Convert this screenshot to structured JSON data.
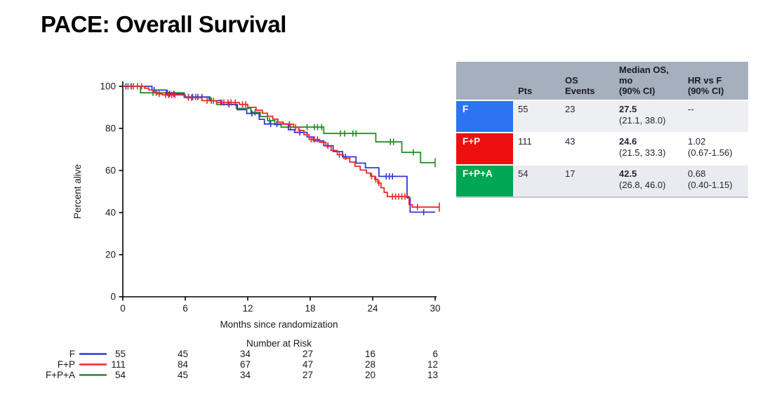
{
  "title": "PACE: Overall Survival",
  "chart_data": {
    "type": "line",
    "subtype": "kaplan-meier-step",
    "title": "",
    "xlabel": "Months since randomization",
    "ylabel": "Percent alive",
    "xlim": [
      0,
      30
    ],
    "ylim": [
      0,
      100
    ],
    "xticks": [
      0,
      6,
      12,
      18,
      24,
      30
    ],
    "yticks": [
      0,
      20,
      40,
      60,
      80,
      100
    ],
    "grid": "off",
    "series": [
      {
        "name": "F",
        "color": "#3236d9",
        "points": [
          [
            0,
            100
          ],
          [
            2.8,
            98.2
          ],
          [
            4.2,
            96.4
          ],
          [
            5.9,
            94.9
          ],
          [
            8.3,
            93.2
          ],
          [
            9.5,
            91.4
          ],
          [
            11.0,
            88.9
          ],
          [
            11.9,
            87.1
          ],
          [
            13.1,
            84.3
          ],
          [
            13.6,
            82.1
          ],
          [
            15.9,
            79.4
          ],
          [
            16.5,
            78.1
          ],
          [
            17.7,
            75.9
          ],
          [
            18.3,
            74.1
          ],
          [
            19.3,
            71.8
          ],
          [
            20.2,
            69.0
          ],
          [
            21.1,
            66.5
          ],
          [
            22.4,
            63.5
          ],
          [
            23.3,
            61.3
          ],
          [
            24.6,
            57.2
          ],
          [
            27.3,
            47.0
          ],
          [
            27.6,
            40.2
          ],
          [
            30.0,
            40.2
          ]
        ],
        "censors": [
          [
            0.3,
            100
          ],
          [
            0.8,
            100
          ],
          [
            3.0,
            98.2
          ],
          [
            4.5,
            96.4
          ],
          [
            4.9,
            96.4
          ],
          [
            6.3,
            94.9
          ],
          [
            6.7,
            94.9
          ],
          [
            7.2,
            94.9
          ],
          [
            7.6,
            94.9
          ],
          [
            10.2,
            91.4
          ],
          [
            12.4,
            87.1
          ],
          [
            14.2,
            82.1
          ],
          [
            14.8,
            82.1
          ],
          [
            17.0,
            78.1
          ],
          [
            19.7,
            71.8
          ],
          [
            21.4,
            66.5
          ],
          [
            25.3,
            57.2
          ],
          [
            25.6,
            57.2
          ],
          [
            25.9,
            57.2
          ],
          [
            28.9,
            40.2
          ]
        ]
      },
      {
        "name": "F+P",
        "color": "#ea2a2a",
        "points": [
          [
            0,
            100
          ],
          [
            2.1,
            99.1
          ],
          [
            2.5,
            98.2
          ],
          [
            2.9,
            97.3
          ],
          [
            3.3,
            96.4
          ],
          [
            3.8,
            95.9
          ],
          [
            6.0,
            94.6
          ],
          [
            7.6,
            93.2
          ],
          [
            9.0,
            92.3
          ],
          [
            11.2,
            91.4
          ],
          [
            12.0,
            90.0
          ],
          [
            12.8,
            88.6
          ],
          [
            13.4,
            87.2
          ],
          [
            13.9,
            85.8
          ],
          [
            14.4,
            84.4
          ],
          [
            14.9,
            83.0
          ],
          [
            15.4,
            82.0
          ],
          [
            16.4,
            80.5
          ],
          [
            16.9,
            79.0
          ],
          [
            17.4,
            77.0
          ],
          [
            17.9,
            74.8
          ],
          [
            18.9,
            73.4
          ],
          [
            19.5,
            71.5
          ],
          [
            20.0,
            69.5
          ],
          [
            20.6,
            67.5
          ],
          [
            21.2,
            65.8
          ],
          [
            21.8,
            64.0
          ],
          [
            22.3,
            62.0
          ],
          [
            22.8,
            60.2
          ],
          [
            23.4,
            58.8
          ],
          [
            23.8,
            57.3
          ],
          [
            24.2,
            55.8
          ],
          [
            24.5,
            54.0
          ],
          [
            24.8,
            51.8
          ],
          [
            25.1,
            49.6
          ],
          [
            25.4,
            47.6
          ],
          [
            27.5,
            43.8
          ],
          [
            27.8,
            42.6
          ],
          [
            30.4,
            42.6
          ]
        ],
        "censors": [
          [
            1.0,
            100
          ],
          [
            1.4,
            100
          ],
          [
            1.8,
            100
          ],
          [
            3.5,
            96.4
          ],
          [
            4.1,
            95.9
          ],
          [
            4.4,
            95.9
          ],
          [
            4.7,
            95.9
          ],
          [
            5.0,
            95.9
          ],
          [
            6.3,
            94.6
          ],
          [
            6.6,
            94.6
          ],
          [
            8.1,
            93.2
          ],
          [
            8.5,
            93.2
          ],
          [
            9.4,
            92.3
          ],
          [
            9.7,
            92.3
          ],
          [
            10.1,
            92.3
          ],
          [
            10.4,
            92.3
          ],
          [
            10.8,
            92.3
          ],
          [
            11.5,
            91.4
          ],
          [
            11.8,
            91.4
          ],
          [
            16.0,
            82.0
          ],
          [
            16.6,
            80.5
          ],
          [
            18.1,
            74.8
          ],
          [
            18.4,
            74.8
          ],
          [
            18.7,
            74.8
          ],
          [
            20.8,
            67.5
          ],
          [
            23.9,
            57.3
          ],
          [
            24.3,
            55.8
          ],
          [
            24.6,
            54.0
          ],
          [
            25.9,
            47.6
          ],
          [
            26.2,
            47.6
          ],
          [
            26.5,
            47.6
          ],
          [
            26.8,
            47.6
          ],
          [
            27.1,
            47.6
          ],
          [
            28.3,
            42.6
          ],
          [
            30.4,
            42.6,
            1
          ]
        ]
      },
      {
        "name": "F+P+A",
        "color": "#268c26",
        "points": [
          [
            0,
            100
          ],
          [
            1.7,
            96.9
          ],
          [
            5.9,
            94.9
          ],
          [
            8.4,
            93.1
          ],
          [
            9.0,
            91.4
          ],
          [
            10.9,
            89.5
          ],
          [
            12.3,
            87.6
          ],
          [
            13.2,
            85.6
          ],
          [
            13.9,
            83.7
          ],
          [
            14.6,
            81.8
          ],
          [
            15.2,
            80.6
          ],
          [
            19.3,
            77.6
          ],
          [
            24.3,
            73.6
          ],
          [
            26.8,
            68.6
          ],
          [
            28.6,
            63.7
          ],
          [
            30.0,
            63.7
          ]
        ],
        "censors": [
          [
            0.5,
            100
          ],
          [
            2.9,
            96.9
          ],
          [
            3.2,
            96.9
          ],
          [
            4.3,
            96.9
          ],
          [
            7.0,
            94.9
          ],
          [
            8.7,
            93.1
          ],
          [
            12.7,
            87.6
          ],
          [
            14.1,
            83.7
          ],
          [
            16.1,
            80.6
          ],
          [
            17.7,
            80.6
          ],
          [
            18.4,
            80.6
          ],
          [
            18.7,
            80.6
          ],
          [
            19.1,
            80.6
          ],
          [
            20.9,
            77.6
          ],
          [
            21.3,
            77.6
          ],
          [
            22.1,
            77.6
          ],
          [
            22.4,
            77.6
          ],
          [
            25.7,
            73.6
          ],
          [
            26.0,
            73.6
          ],
          [
            27.9,
            68.6
          ],
          [
            30.0,
            63.7,
            1
          ]
        ]
      }
    ],
    "risk_table": {
      "title": "Number at Risk",
      "months": [
        0,
        6,
        12,
        18,
        24,
        30
      ],
      "rows": [
        {
          "name": "F",
          "color": "#3236d9",
          "counts": [
            55,
            45,
            34,
            27,
            16,
            6
          ]
        },
        {
          "name": "F+P",
          "color": "#ea2a2a",
          "counts": [
            111,
            84,
            67,
            47,
            28,
            12
          ]
        },
        {
          "name": "F+P+A",
          "color": "#268c26",
          "counts": [
            54,
            45,
            34,
            27,
            20,
            13
          ]
        }
      ]
    }
  },
  "summary_table": {
    "headers": {
      "label": "",
      "pts": "Pts",
      "events": "OS\nEvents",
      "median": "Median OS,\nmo\n(90% CI)",
      "hr": "HR vs F\n(90% CI)"
    },
    "rows": [
      {
        "label": "F",
        "color": "#2d74f2",
        "pts": "55",
        "events": "23",
        "median": "27.5",
        "median_ci": "(21.1, 38.0)",
        "hr": "--",
        "hr_ci": ""
      },
      {
        "label": "F+P",
        "color": "#ee1010",
        "pts": "111",
        "events": "43",
        "median": "24.6",
        "median_ci": "(21.5, 33.3)",
        "hr": "1.02",
        "hr_ci": "(0.67-1.56)"
      },
      {
        "label": "F+P+A",
        "color": "#00a651",
        "pts": "54",
        "events": "17",
        "median": "42.5",
        "median_ci": "(26.8, 46.0)",
        "hr": "0.68",
        "hr_ci": "(0.40-1.15)"
      }
    ]
  }
}
